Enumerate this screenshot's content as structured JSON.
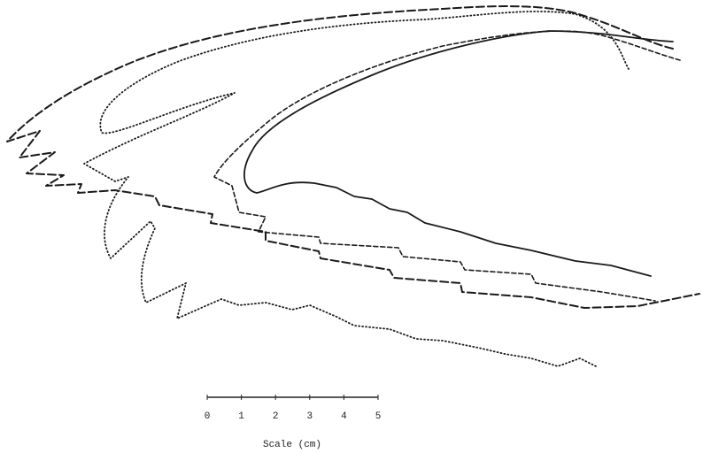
{
  "scale_bar": {
    "ticks": [
      0,
      1,
      2,
      3,
      4,
      5
    ],
    "label": "Scale (cm)"
  }
}
